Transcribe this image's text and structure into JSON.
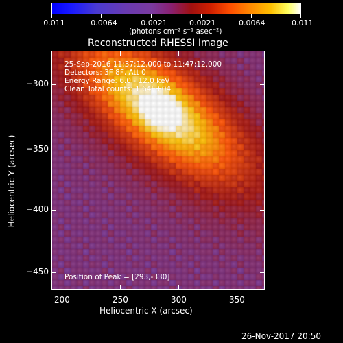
{
  "colorbar": {
    "tick_labels": [
      "−0.011",
      "−0.0064",
      "−0.0021",
      "0.0021",
      "0.0064",
      "0.011"
    ],
    "unit_label": "(photons cm⁻² s⁻¹ asec⁻²)"
  },
  "title": "Reconstructed RHESSI Image",
  "annotations": {
    "time_range": "25-Sep-2016 11:37:12.000 to 11:47:12.000",
    "detectors": "Detectors: 3F 8F, Att 0",
    "energy": "Energy Range: 6.0 - 12.0 keV",
    "method_counts": "Clean     Total counts: 1.64E+04",
    "peak": "Position of Peak = [293,-330]"
  },
  "axes": {
    "xlabel": "Heliocentric X (arcsec)",
    "ylabel": "Heliocentric Y (arcsec)",
    "x_ticks": [
      "200",
      "250",
      "300",
      "350"
    ],
    "y_ticks": [
      "−300",
      "−350",
      "−400",
      "−450"
    ]
  },
  "footer_date": "26-Nov-2017 20:50",
  "image": {
    "peak_x_arcsec": 293,
    "peak_y_arcsec": -330,
    "x_range_arcsec": [
      195,
      387
    ],
    "y_range_arcsec": [
      -285,
      -468
    ],
    "colormap": [
      "#0000ff",
      "#6a3ab0",
      "#a01010",
      "#ff5000",
      "#ffc000",
      "#ffffff"
    ]
  }
}
